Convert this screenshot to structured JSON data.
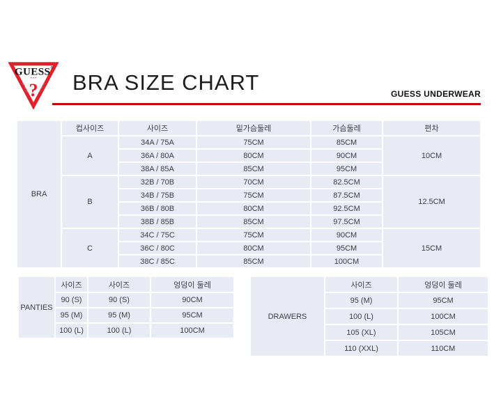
{
  "header": {
    "title": "BRA SIZE CHART",
    "brand_right": "GUESS UNDERWEAR"
  },
  "logo": {
    "brand": "GUESS",
    "registered": "®",
    "dots": "• • •",
    "mark": "?"
  },
  "colors": {
    "accent_red": "#c00606",
    "logo_red": "#e41e2b",
    "cell_background": "#e8ebf4",
    "cell_text": "#3c3c43"
  },
  "bra_table": {
    "row_label": "BRA",
    "column_headers": [
      "컵사이즈",
      "사이즈",
      "밑가슴둘레",
      "가슴둘레",
      "편차"
    ],
    "groups": [
      {
        "cup": "A",
        "deviation": "10CM",
        "rows": [
          {
            "size": "34A / 75A",
            "under_bust": "75CM",
            "bust": "85CM"
          },
          {
            "size": "36A / 80A",
            "under_bust": "80CM",
            "bust": "90CM"
          },
          {
            "size": "38A / 85A",
            "under_bust": "85CM",
            "bust": "95CM"
          }
        ]
      },
      {
        "cup": "B",
        "deviation": "12.5CM",
        "rows": [
          {
            "size": "32B / 70B",
            "under_bust": "70CM",
            "bust": "82.5CM"
          },
          {
            "size": "34B / 75B",
            "under_bust": "75CM",
            "bust": "87.5CM"
          },
          {
            "size": "36B / 80B",
            "under_bust": "80CM",
            "bust": "92.5CM"
          },
          {
            "size": "38B / 85B",
            "under_bust": "85CM",
            "bust": "97.5CM"
          }
        ]
      },
      {
        "cup": "C",
        "deviation": "15CM",
        "rows": [
          {
            "size": "34C / 75C",
            "under_bust": "75CM",
            "bust": "90CM"
          },
          {
            "size": "36C / 80C",
            "under_bust": "80CM",
            "bust": "95CM"
          },
          {
            "size": "38C / 85C",
            "under_bust": "85CM",
            "bust": "100CM"
          }
        ]
      }
    ]
  },
  "panties_table": {
    "row_label": "PANTIES",
    "column_headers": [
      "사이즈",
      "사이즈",
      "엉덩이 둘레"
    ],
    "rows": [
      [
        "90 (S)",
        "90 (S)",
        "90CM"
      ],
      [
        "95 (M)",
        "95 (M)",
        "95CM"
      ],
      [
        "100 (L)",
        "100 (L)",
        "100CM"
      ]
    ]
  },
  "drawers_table": {
    "row_label": "DRAWERS",
    "column_headers": [
      "사이즈",
      "엉덩이 둘레"
    ],
    "rows": [
      [
        "95 (M)",
        "95CM"
      ],
      [
        "100 (L)",
        "100CM"
      ],
      [
        "105 (XL)",
        "105CM"
      ],
      [
        "110 (XXL)",
        "110CM"
      ]
    ]
  }
}
